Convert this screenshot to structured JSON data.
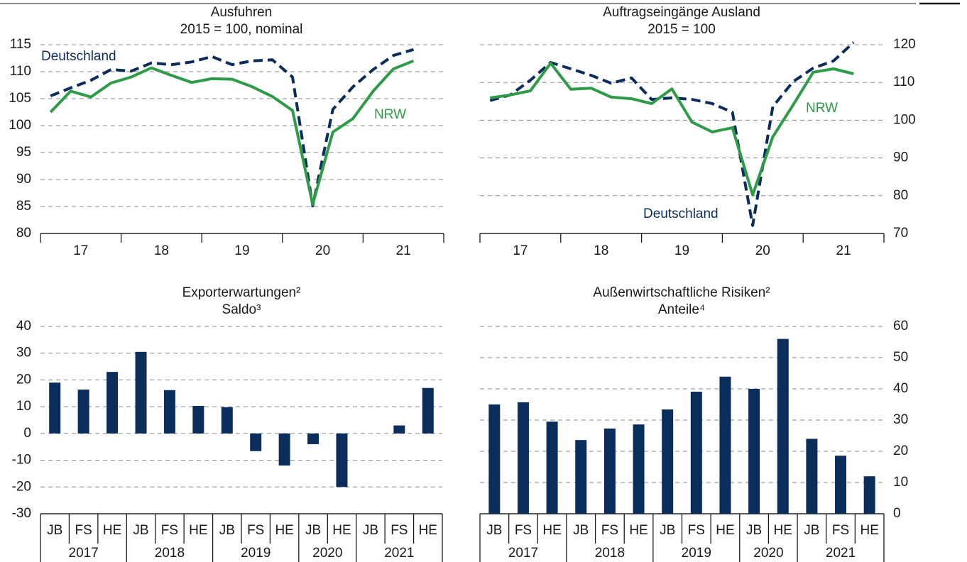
{
  "chart_data": [
    {
      "type": "line",
      "title": "Ausfuhren",
      "subtitle": "2015 = 100, nominal",
      "category_groups": [
        "17",
        "17",
        "17",
        "17",
        "18",
        "18",
        "18",
        "18",
        "19",
        "19",
        "19",
        "19",
        "20",
        "20",
        "20",
        "20",
        "21",
        "21",
        "21"
      ],
      "series": [
        {
          "name": "Deutschland",
          "color": "#0b2d5b",
          "line_style": "dashed",
          "values": [
            105.5,
            107,
            108.4,
            110.4,
            110.1,
            111.6,
            111.3,
            111.8,
            112.8,
            111.3,
            112,
            112.2,
            109,
            85.1,
            103,
            107.2,
            110.4,
            113,
            114.1
          ]
        },
        {
          "name": "NRW",
          "color": "#2e9b48",
          "line_style": "solid",
          "values": [
            102.5,
            106.4,
            105.3,
            107.9,
            109,
            110.7,
            109.3,
            108,
            108.7,
            108.6,
            107.2,
            105.4,
            102.8,
            85.4,
            98.8,
            101.3,
            106.4,
            110.5,
            112
          ]
        }
      ],
      "ylim": [
        80,
        115
      ],
      "yticks": [
        80,
        85,
        90,
        95,
        100,
        105,
        110,
        115
      ],
      "y_axis_side": "left",
      "grid": true
    },
    {
      "type": "line",
      "title": "Auftragseingänge Ausland",
      "subtitle": "2015 = 100",
      "category_groups": [
        "17",
        "17",
        "17",
        "17",
        "18",
        "18",
        "18",
        "18",
        "19",
        "19",
        "19",
        "19",
        "20",
        "20",
        "20",
        "20",
        "21",
        "21",
        "21"
      ],
      "series": [
        {
          "name": "Deutschland",
          "color": "#0b2d5b",
          "line_style": "dashed",
          "values": [
            105.2,
            106.7,
            110.6,
            115.3,
            113.6,
            111.9,
            109.8,
            111.2,
            105.5,
            105.9,
            105.5,
            104.4,
            102.1,
            72.1,
            103.6,
            110.2,
            113.8,
            115.7,
            120.6
          ]
        },
        {
          "name": "NRW",
          "color": "#2e9b48",
          "line_style": "solid",
          "values": [
            105.9,
            106.7,
            107.8,
            115.1,
            108.2,
            108.5,
            106.1,
            105.7,
            104.4,
            108.3,
            99.5,
            96.9,
            98,
            80.2,
            95.6,
            104,
            112.7,
            113.6,
            112.3
          ]
        }
      ],
      "ylim": [
        70,
        120
      ],
      "yticks": [
        70,
        80,
        90,
        100,
        110,
        120
      ],
      "y_axis_side": "right",
      "grid": true
    },
    {
      "type": "bar",
      "title": "Exporterwartungen²",
      "subtitle": "Saldo³",
      "categories": [
        "JB",
        "FS",
        "HE",
        "JB",
        "FS",
        "HE",
        "JB",
        "FS",
        "HE",
        "JB",
        "HE",
        "JB",
        "FS",
        "HE"
      ],
      "category_groups": [
        "2017",
        "2017",
        "2017",
        "2018",
        "2018",
        "2018",
        "2019",
        "2019",
        "2019",
        "2020",
        "2020",
        "2021",
        "2021",
        "2021"
      ],
      "values": [
        19,
        16.4,
        23,
        30.5,
        16.2,
        10.3,
        9.8,
        -6.6,
        -12,
        -4,
        -20,
        0,
        3,
        17
      ],
      "color": "#0b2d5b",
      "ylim": [
        -30,
        40
      ],
      "yticks": [
        -30,
        -20,
        -10,
        0,
        10,
        20,
        30,
        40
      ],
      "y_axis_side": "left",
      "grid": true
    },
    {
      "type": "bar",
      "title": "Außenwirtschaftliche Risiken²",
      "subtitle": "Anteile⁴",
      "categories": [
        "JB",
        "FS",
        "HE",
        "JB",
        "FS",
        "HE",
        "JB",
        "FS",
        "HE",
        "JB",
        "HE",
        "JB",
        "FS",
        "HE"
      ],
      "category_groups": [
        "2017",
        "2017",
        "2017",
        "2018",
        "2018",
        "2018",
        "2019",
        "2019",
        "2019",
        "2020",
        "2020",
        "2021",
        "2021",
        "2021"
      ],
      "values": [
        35,
        35.7,
        29.5,
        23.6,
        27.3,
        28.6,
        33.4,
        39.1,
        43.9,
        40,
        56,
        24,
        18.6,
        12
      ],
      "color": "#0b2d5b",
      "ylim": [
        0,
        60
      ],
      "yticks": [
        0,
        10,
        20,
        30,
        40,
        50,
        60
      ],
      "y_axis_side": "right",
      "grid": true
    }
  ]
}
